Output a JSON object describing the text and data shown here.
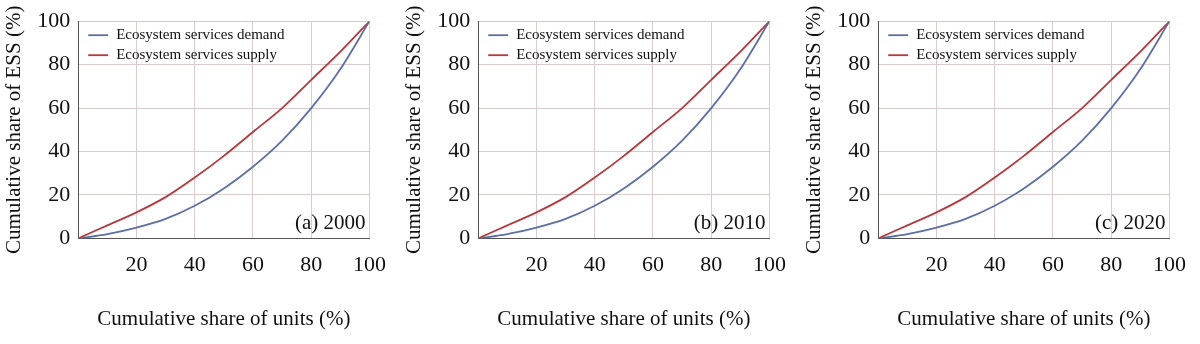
{
  "chart_data": [
    {
      "type": "line",
      "xlabel": "Cumulative share of units (%)",
      "ylabel": "Cumulative share of ESS (%)",
      "annotations": [
        "(a) 2000"
      ],
      "x": [
        0,
        10,
        20,
        30,
        40,
        50,
        60,
        70,
        80,
        90,
        100
      ],
      "xlim": [
        0,
        100
      ],
      "xticks": [
        20,
        40,
        60,
        80,
        100
      ],
      "ylim": [
        0,
        100
      ],
      "yticks": [
        0,
        20,
        40,
        60,
        80,
        100
      ],
      "grid": true,
      "legend": "top left",
      "marker": "none",
      "series": [
        {
          "name": "Ecosystem services demand",
          "color": "#5b6fa8",
          "values": [
            0,
            2,
            5,
            9,
            15,
            23,
            33,
            45,
            60,
            78,
            100
          ]
        },
        {
          "name": "Ecosystem services supply",
          "color": "#b8373b",
          "values": [
            0,
            6,
            12,
            19,
            28,
            38,
            49,
            60,
            73,
            86,
            100
          ]
        }
      ]
    },
    {
      "type": "line",
      "xlabel": "Cumulative share of units (%)",
      "ylabel": "Cumulative share of ESS (%)",
      "annotations": [
        "(b) 2010"
      ],
      "x": [
        0,
        10,
        20,
        30,
        40,
        50,
        60,
        70,
        80,
        90,
        100
      ],
      "xlim": [
        0,
        100
      ],
      "xticks": [
        20,
        40,
        60,
        80,
        100
      ],
      "ylim": [
        0,
        100
      ],
      "yticks": [
        0,
        20,
        40,
        60,
        80,
        100
      ],
      "grid": true,
      "legend": "top left",
      "marker": "none",
      "series": [
        {
          "name": "Ecosystem services demand",
          "color": "#5b6fa8",
          "values": [
            0,
            2,
            5,
            9,
            15,
            23,
            33,
            45,
            60,
            78,
            100
          ]
        },
        {
          "name": "Ecosystem services supply",
          "color": "#b8373b",
          "values": [
            0,
            6,
            12,
            19,
            28,
            38,
            49,
            60,
            73,
            86,
            100
          ]
        }
      ]
    },
    {
      "type": "line",
      "xlabel": "Cumulative share of units (%)",
      "ylabel": "Cumulative share of ESS (%)",
      "annotations": [
        "(c) 2020"
      ],
      "x": [
        0,
        10,
        20,
        30,
        40,
        50,
        60,
        70,
        80,
        90,
        100
      ],
      "xlim": [
        0,
        100
      ],
      "xticks": [
        20,
        40,
        60,
        80,
        100
      ],
      "ylim": [
        0,
        100
      ],
      "yticks": [
        0,
        20,
        40,
        60,
        80,
        100
      ],
      "grid": true,
      "legend": "top left",
      "marker": "none",
      "series": [
        {
          "name": "Ecosystem services demand",
          "color": "#5b6fa8",
          "values": [
            0,
            2,
            5,
            9,
            15,
            23,
            33,
            45,
            60,
            78,
            100
          ]
        },
        {
          "name": "Ecosystem services supply",
          "color": "#b8373b",
          "values": [
            0,
            6,
            12,
            19,
            28,
            38,
            49,
            60,
            73,
            86,
            100
          ]
        }
      ]
    }
  ]
}
